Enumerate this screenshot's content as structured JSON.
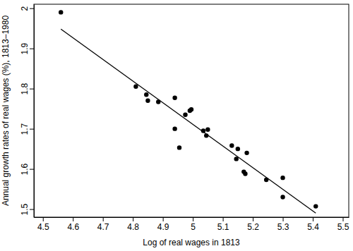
{
  "chart_data": {
    "type": "scatter",
    "x_label": "Log of real wages in 1813",
    "y_label": "Annual growth rates of real wages (%), 1813–1980",
    "xlim": [
      4.47,
      5.52
    ],
    "ylim": [
      1.48,
      2.01
    ],
    "xticks": [
      4.5,
      4.6,
      4.7,
      4.8,
      4.9,
      5,
      5.1,
      5.2,
      5.3,
      5.4,
      5.5
    ],
    "yticks": [
      1.5,
      1.6,
      1.7,
      1.8,
      1.9,
      2
    ],
    "grid": false,
    "series": [
      {
        "type": "scatter",
        "color": "#000000",
        "marker": "circle",
        "x": [
          4.56,
          4.81,
          4.845,
          4.85,
          4.885,
          4.94,
          4.94,
          4.955,
          4.975,
          4.99,
          4.995,
          5.035,
          5.045,
          5.05,
          5.13,
          5.145,
          5.15,
          5.17,
          5.175,
          5.18,
          5.245,
          5.3,
          5.3,
          5.41
        ],
        "values": [
          1.99,
          1.805,
          1.785,
          1.77,
          1.767,
          1.777,
          1.7,
          1.653,
          1.735,
          1.745,
          1.748,
          1.695,
          1.683,
          1.698,
          1.658,
          1.625,
          1.65,
          1.593,
          1.588,
          1.64,
          1.573,
          1.578,
          1.53,
          1.507
        ]
      },
      {
        "type": "line",
        "color": "#000000",
        "line_style": "solid",
        "x": [
          4.56,
          5.41
        ],
        "values": [
          1.948,
          1.49
        ]
      }
    ]
  }
}
